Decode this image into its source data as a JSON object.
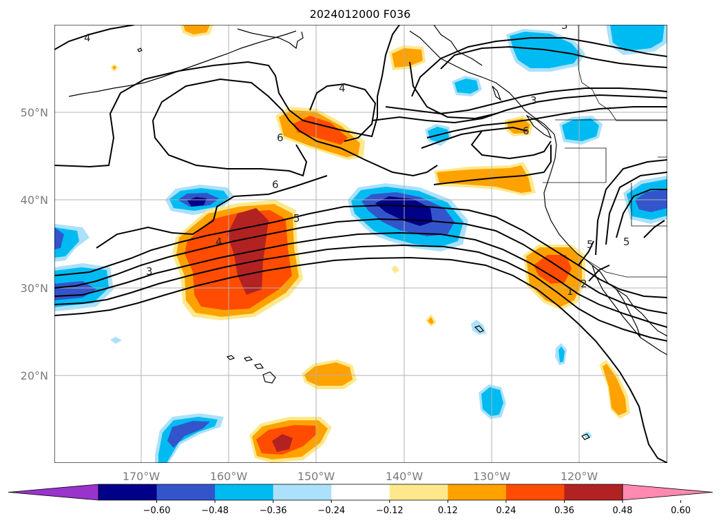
{
  "title": "2024012000 F036",
  "map": {
    "lon_labels": [
      "170°W",
      "160°W",
      "150°W",
      "140°W",
      "130°W",
      "120°W"
    ],
    "lat_labels": [
      "50°N",
      "40°N",
      "30°N",
      "20°N"
    ],
    "contour_labels": [
      "4",
      "4",
      "6",
      "6",
      "3",
      "6",
      "4",
      "3",
      "5",
      "1",
      "5",
      "5",
      "3",
      "2"
    ]
  },
  "colorbar": {
    "colors": [
      "#9933cc",
      "#000088",
      "#3355cc",
      "#00bbf2",
      "#abe1fa",
      "#ffffff",
      "#fde98c",
      "#ffa200",
      "#ff4c00",
      "#b22222",
      "#ff89b0"
    ],
    "ticks": [
      "−0.60",
      "−0.48",
      "−0.36",
      "−0.24",
      "−0.12",
      "0.12",
      "0.24",
      "0.36",
      "0.48",
      "0.60"
    ]
  }
}
